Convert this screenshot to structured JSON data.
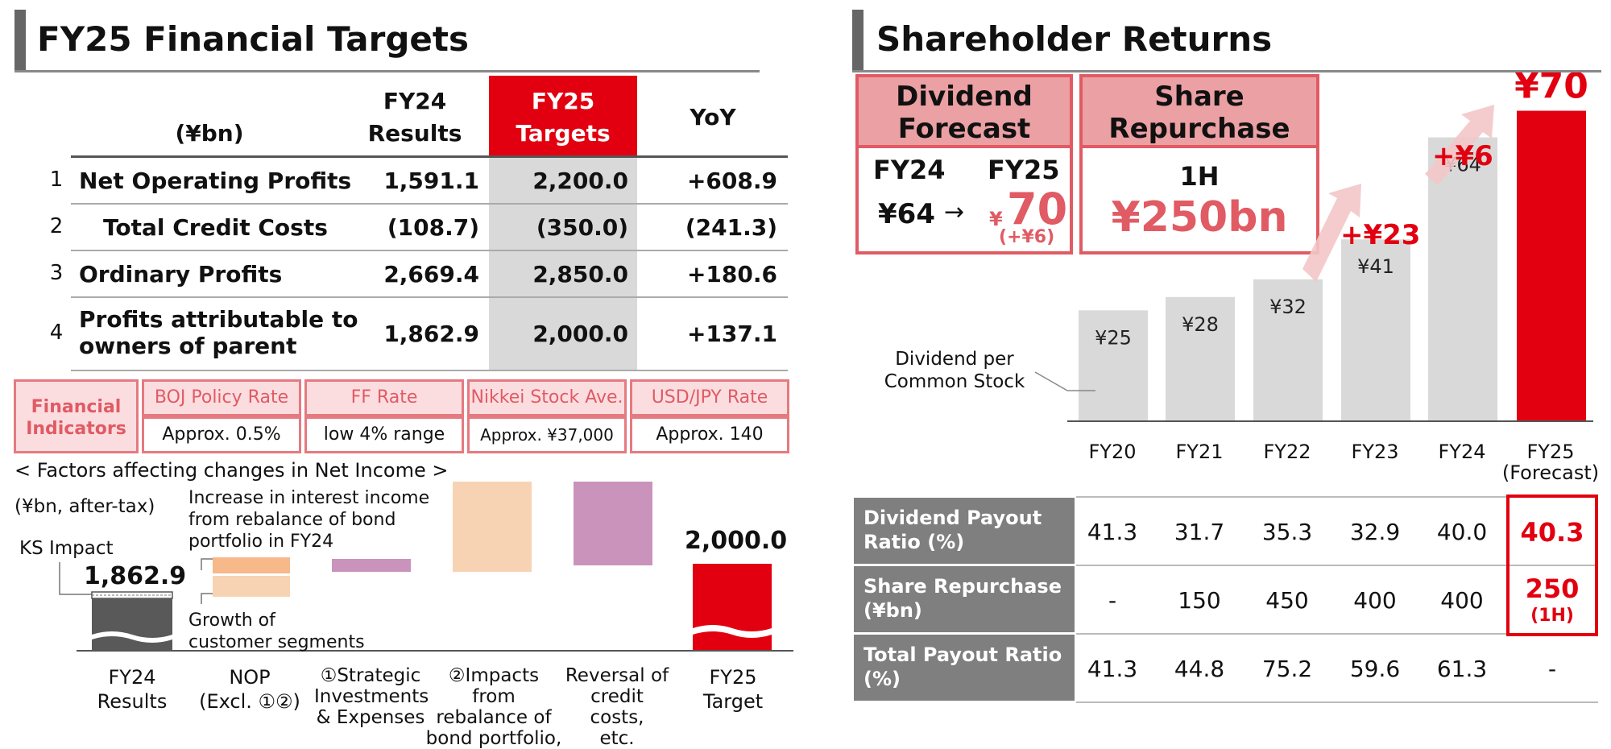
{
  "left": {
    "title": "FY25 Financial Targets",
    "table": {
      "unit": "(¥bn)",
      "col_fy24": [
        "FY24",
        "Results"
      ],
      "col_fy25": [
        "FY25",
        "Targets"
      ],
      "col_yoy": "YoY",
      "rows": [
        {
          "idx": "1",
          "label": "Net Operating Profits",
          "fy24": "1,591.1",
          "fy25": "2,200.0",
          "yoy": "+608.9"
        },
        {
          "idx": "2",
          "label": "Total Credit Costs",
          "fy24": "(108.7)",
          "fy25": "(350.0)",
          "yoy": "(241.3)"
        },
        {
          "idx": "3",
          "label": "Ordinary Profits",
          "fy24": "2,669.4",
          "fy25": "2,850.0",
          "yoy": "+180.6"
        },
        {
          "idx": "4",
          "label": [
            "Profits attributable to",
            "owners of parent"
          ],
          "fy24": "1,862.9",
          "fy25": "2,000.0",
          "yoy": "+137.1"
        }
      ]
    },
    "indicators": {
      "title": [
        "Financial",
        "Indicators"
      ],
      "items": [
        {
          "name": "BOJ Policy Rate",
          "value": "Approx. 0.5%"
        },
        {
          "name": "FF Rate",
          "value": "low 4% range"
        },
        {
          "name": "Nikkei Stock Ave.",
          "value": "Approx. ¥37,000"
        },
        {
          "name": "USD/JPY Rate",
          "value": "Approx. 140"
        }
      ]
    },
    "waterfall": {
      "heading": "< Factors affecting changes in Net Income >",
      "unit": "(¥bn, after-tax)",
      "ks_impact": "KS Impact",
      "start_value": "1,862.9",
      "end_value": "2,000.0",
      "anno_interest": [
        "Increase in interest income",
        "from rebalance of bond",
        "portfolio in FY24"
      ],
      "anno_growth": [
        "Growth of",
        "customer segments"
      ],
      "categories": [
        [
          "FY24",
          "Results"
        ],
        [
          "NOP",
          "(Excl. ①②)"
        ],
        [
          "①Strategic",
          "Investments",
          "& Expenses"
        ],
        [
          "②Impacts from",
          "rebalance of",
          "bond portfolio,"
        ],
        [
          "Reversal of",
          "credit costs,",
          "etc."
        ],
        [
          "FY25",
          "Target"
        ]
      ]
    }
  },
  "right": {
    "title": "Shareholder Returns",
    "dividend_box": {
      "head": [
        "Dividend",
        "Forecast"
      ],
      "fy24_label": "FY24",
      "fy25_label": "FY25",
      "fy24_value": "¥64",
      "arrow": "→",
      "yen": "¥",
      "fy25_value": "70",
      "change": "(+¥6)"
    },
    "repurchase_box": {
      "head": [
        "Share",
        "Repurchase"
      ],
      "period": "1H",
      "amount": "¥250bn"
    },
    "dps_label": [
      "Dividend per",
      "Common Stock"
    ],
    "increments": {
      "fy23": "+¥23",
      "fy24": "+¥6"
    },
    "chart_data": {
      "type": "bar",
      "categories": [
        "FY20",
        "FY21",
        "FY22",
        "FY23",
        "FY24",
        "FY25"
      ],
      "category_sub": {
        "FY25": "(Forecast)"
      },
      "values": [
        25,
        28,
        32,
        41,
        64,
        70
      ],
      "value_labels": [
        "¥25",
        "¥28",
        "¥32",
        "¥41",
        "¥64",
        "¥70"
      ],
      "ylabel": "",
      "ylim": [
        0,
        75
      ],
      "colors": {
        "normal": "#d9d9d9",
        "highlight": "#e20010"
      }
    },
    "table": {
      "rows": [
        {
          "label": [
            "Dividend Payout",
            "Ratio (%)"
          ],
          "values": [
            "41.3",
            "31.7",
            "35.3",
            "32.9",
            "40.0"
          ],
          "fy25": "40.3",
          "fy25_sub": ""
        },
        {
          "label": [
            "Share Repurchase",
            "(¥bn)"
          ],
          "values": [
            "-",
            "150",
            "450",
            "400",
            "400"
          ],
          "fy25": "250",
          "fy25_sub": "(1H)"
        },
        {
          "label": [
            "Total Payout Ratio",
            "(%)"
          ],
          "values": [
            "41.3",
            "44.8",
            "75.2",
            "59.6",
            "61.3"
          ],
          "fy25": "-",
          "fy25_sub": ""
        }
      ]
    }
  },
  "colors": {
    "accent": "#e20010",
    "pink": "#e05b64",
    "gray": "#7f7f7f",
    "bar": "#d9d9d9"
  }
}
